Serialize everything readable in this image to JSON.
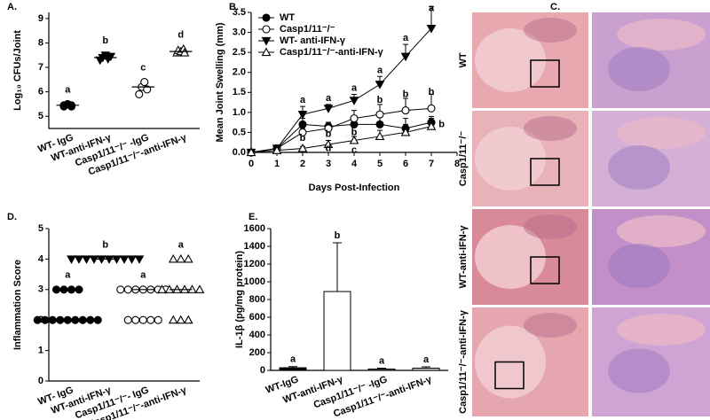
{
  "chart_data": [
    {
      "type": "dot",
      "panel_label": "A.",
      "ylabel": "Log₁₀ CFUs/Joint",
      "ylim": [
        4.5,
        9.25
      ],
      "yticks": [
        5,
        6,
        7,
        8,
        9
      ],
      "groups": [
        {
          "name": "WT- IgG",
          "marker": "circle",
          "filled": true,
          "values": [
            5.4,
            5.45,
            5.5,
            5.45,
            5.4
          ],
          "median": 5.45,
          "letter": "a"
        },
        {
          "name": "WT-anti-IFN-γ",
          "marker": "down",
          "filled": true,
          "values": [
            7.3,
            7.4,
            7.5,
            7.35,
            7.45
          ],
          "median": 7.4,
          "letter": "b"
        },
        {
          "name": "Casp1/11⁻/⁻ -IgG",
          "marker": "circle",
          "filled": false,
          "values": [
            5.9,
            6.2,
            6.4,
            6.1
          ],
          "median": 6.2,
          "letter": "c"
        },
        {
          "name": "Casp1/11⁻/⁻-anti-IFN-γ",
          "marker": "up",
          "filled": false,
          "values": [
            7.6,
            7.7,
            7.65,
            7.75,
            7.6
          ],
          "median": 7.65,
          "letter": "d"
        }
      ]
    },
    {
      "type": "line",
      "panel_label": "B.",
      "ylabel": "Mean Joint Swelling (mm)",
      "xlabel": "Days Post-Infection",
      "x": [
        0,
        1,
        2,
        3,
        4,
        5,
        6,
        7
      ],
      "xlim": [
        0,
        8
      ],
      "xticks": [
        0,
        1,
        2,
        3,
        4,
        5,
        6,
        7,
        8
      ],
      "ylim": [
        0,
        3.5
      ],
      "yticks": [
        {
          "value": 0,
          "label": "0.0"
        },
        0.5,
        {
          "value": 1,
          "label": "1.0"
        },
        1.5,
        {
          "value": 2,
          "label": "2.0"
        },
        2.5,
        {
          "value": 3,
          "label": "3.0"
        },
        3.5
      ],
      "legend": "top-left",
      "series": [
        {
          "name": "WT",
          "marker": "circle",
          "filled": true,
          "values": [
            0,
            0.1,
            0.7,
            0.65,
            0.7,
            0.7,
            0.6,
            0.75
          ],
          "errors": [
            0,
            0.03,
            0.15,
            0.1,
            0.2,
            0.3,
            0.25,
            0.15
          ]
        },
        {
          "name": "Casp1/11⁻/⁻",
          "marker": "circle",
          "filled": false,
          "values": [
            0,
            0.1,
            0.5,
            0.6,
            0.85,
            0.95,
            1.05,
            1.1
          ],
          "errors": [
            0,
            0.03,
            0.1,
            0.15,
            0.2,
            0.25,
            0.3,
            0.35
          ]
        },
        {
          "name": "WT- anti-IFN-γ",
          "marker": "down",
          "filled": true,
          "values": [
            0,
            0.1,
            0.95,
            1.1,
            1.3,
            1.7,
            2.4,
            3.1
          ],
          "errors": [
            0,
            0.03,
            0.2,
            0.1,
            0.15,
            0.2,
            0.3,
            0.55
          ]
        },
        {
          "name": "Casp1/11⁻/⁻-anti-IFN-γ",
          "marker": "up",
          "filled": false,
          "values": [
            0,
            0.05,
            0.1,
            0.2,
            0.3,
            0.4,
            0.5,
            0.65
          ],
          "errors": [
            0,
            0.02,
            0.05,
            0.1,
            0.1,
            0.15,
            0.2,
            0.2
          ]
        }
      ],
      "annotations": [
        {
          "x": 2,
          "y": 1.3,
          "text": "a"
        },
        {
          "x": 3,
          "y": 1.35,
          "text": "a"
        },
        {
          "x": 4,
          "y": 1.6,
          "text": "a"
        },
        {
          "x": 5,
          "y": 2.05,
          "text": "a"
        },
        {
          "x": 6,
          "y": 2.85,
          "text": "a"
        },
        {
          "x": 7,
          "y": 3.6,
          "text": "a"
        },
        {
          "x": 2,
          "y": 0.35,
          "text": "b"
        },
        {
          "x": 3,
          "y": 0.45,
          "text": "b"
        },
        {
          "x": 4,
          "y": 0.5,
          "text": "b"
        },
        {
          "x": 5,
          "y": 1.3,
          "text": "b"
        },
        {
          "x": 6,
          "y": 1.45,
          "text": "b"
        },
        {
          "x": 7,
          "y": 1.5,
          "text": "b"
        },
        {
          "x": 7.4,
          "y": 0.7,
          "text": "b"
        },
        {
          "x": 3,
          "y": 0.1,
          "text": "d"
        },
        {
          "x": 4,
          "y": 0.05,
          "text": "c"
        }
      ]
    },
    {
      "type": "dot",
      "panel_label": "D.",
      "ylabel": "Inflammation  Score",
      "ylim": [
        0,
        5
      ],
      "yticks": [
        0,
        1,
        2,
        3,
        4,
        5
      ],
      "groups": [
        {
          "name": "WT- IgG",
          "marker": "circle",
          "filled": true,
          "values": [
            2,
            2,
            2,
            2,
            2,
            2,
            2,
            2,
            2,
            3,
            3,
            3,
            3
          ],
          "median": 2,
          "letter": "a"
        },
        {
          "name": "WT-anti-IFN-γ",
          "marker": "down",
          "filled": true,
          "values": [
            4,
            4,
            4,
            4,
            4,
            4,
            4,
            4,
            4,
            4
          ],
          "median": 4,
          "letter": "b"
        },
        {
          "name": "Casp1/11⁻/⁻- IgG",
          "marker": "circle",
          "filled": false,
          "values": [
            3,
            3,
            3,
            3,
            3,
            3,
            3,
            2,
            2,
            2,
            2,
            2
          ],
          "median": 3,
          "letter": "a"
        },
        {
          "name": "Casp1/11⁻/⁻-anti-IFN-γ",
          "marker": "up",
          "filled": false,
          "values": [
            4,
            4,
            4,
            3,
            3,
            3,
            3,
            3,
            3,
            2,
            2,
            2
          ],
          "median": 3,
          "letter": "a"
        }
      ]
    },
    {
      "type": "bar",
      "panel_label": "E.",
      "ylabel": "IL-1β (pg/mg protein)",
      "ylim": [
        0,
        1600
      ],
      "yticks": [
        0,
        200,
        400,
        600,
        800,
        1000,
        1200,
        1400,
        1600
      ],
      "categories": [
        "WT-IgG",
        "WT-anti-IFN-γ",
        "Casp1/11⁻/⁻ -IgG",
        "Casp1/11⁻/⁻-anti-IFN-γ"
      ],
      "values": [
        30,
        890,
        15,
        25
      ],
      "errors": [
        12,
        550,
        10,
        15
      ],
      "colors": [
        "#000000",
        "#ffffff",
        "#808080",
        "#d0d0d0"
      ],
      "letters": [
        "a",
        "b",
        "a",
        "a"
      ]
    }
  ],
  "histology": {
    "panel_label": "C.",
    "rows": [
      "WT",
      "Casp1/11⁻/⁻",
      "WT-anti-IFN-γ",
      "Casp1/11⁻/⁻-anti-IFN-γ"
    ]
  }
}
